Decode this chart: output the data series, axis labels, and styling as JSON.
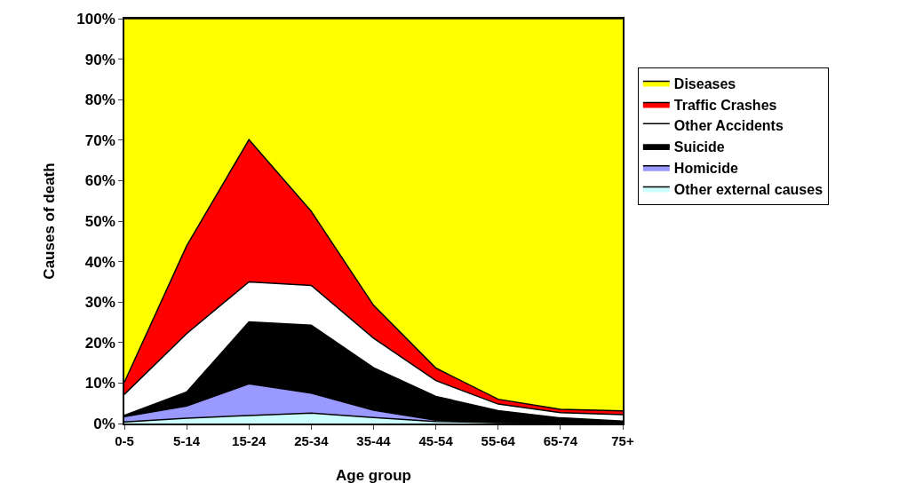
{
  "chart_data": {
    "type": "area",
    "stacked": true,
    "xlabel": "Age group",
    "ylabel": "Causes of death",
    "categories": [
      "0-5",
      "5-14",
      "15-24",
      "25-34",
      "35-44",
      "45-54",
      "55-64",
      "65-74",
      "75+"
    ],
    "series": [
      {
        "name": "Other external causes",
        "color": "#ccffff",
        "values": [
          0.4,
          1.3,
          2.0,
          2.6,
          1.5,
          0.5,
          0.2,
          0.1,
          0.1
        ]
      },
      {
        "name": "Homicide",
        "color": "#9999ff",
        "values": [
          1.3,
          3.0,
          7.8,
          4.9,
          1.8,
          0.3,
          0.1,
          0.1,
          0.1
        ]
      },
      {
        "name": "Suicide",
        "color": "#000000",
        "values": [
          0.3,
          3.5,
          15.3,
          16.8,
          10.5,
          5.9,
          2.9,
          1.2,
          0.4
        ]
      },
      {
        "name": "Other Accidents",
        "color": "#ffffff",
        "values": [
          5.2,
          14.4,
          9.9,
          9.8,
          7.3,
          3.9,
          1.6,
          1.3,
          1.6
        ]
      },
      {
        "name": "Traffic Crashes",
        "color": "#ff0000",
        "values": [
          3.0,
          21.7,
          35.1,
          18.3,
          8.1,
          3.1,
          1.2,
          0.8,
          0.9
        ]
      },
      {
        "name": "Diseases",
        "color": "#ffff00",
        "values": [
          89.8,
          56.1,
          29.9,
          47.6,
          70.8,
          86.3,
          94.0,
          96.5,
          96.9
        ]
      }
    ],
    "ylim": [
      0,
      100
    ],
    "yticks": [
      {
        "value": 0,
        "label": "0%"
      },
      {
        "value": 10,
        "label": "10%"
      },
      {
        "value": 20,
        "label": "20%"
      },
      {
        "value": 30,
        "label": "30%"
      },
      {
        "value": 40,
        "label": "40%"
      },
      {
        "value": 50,
        "label": "50%"
      },
      {
        "value": 60,
        "label": "60%"
      },
      {
        "value": 70,
        "label": "70%"
      },
      {
        "value": 80,
        "label": "80%"
      },
      {
        "value": 90,
        "label": "90%"
      },
      {
        "value": 100,
        "label": "100%"
      }
    ],
    "legend": "right"
  }
}
